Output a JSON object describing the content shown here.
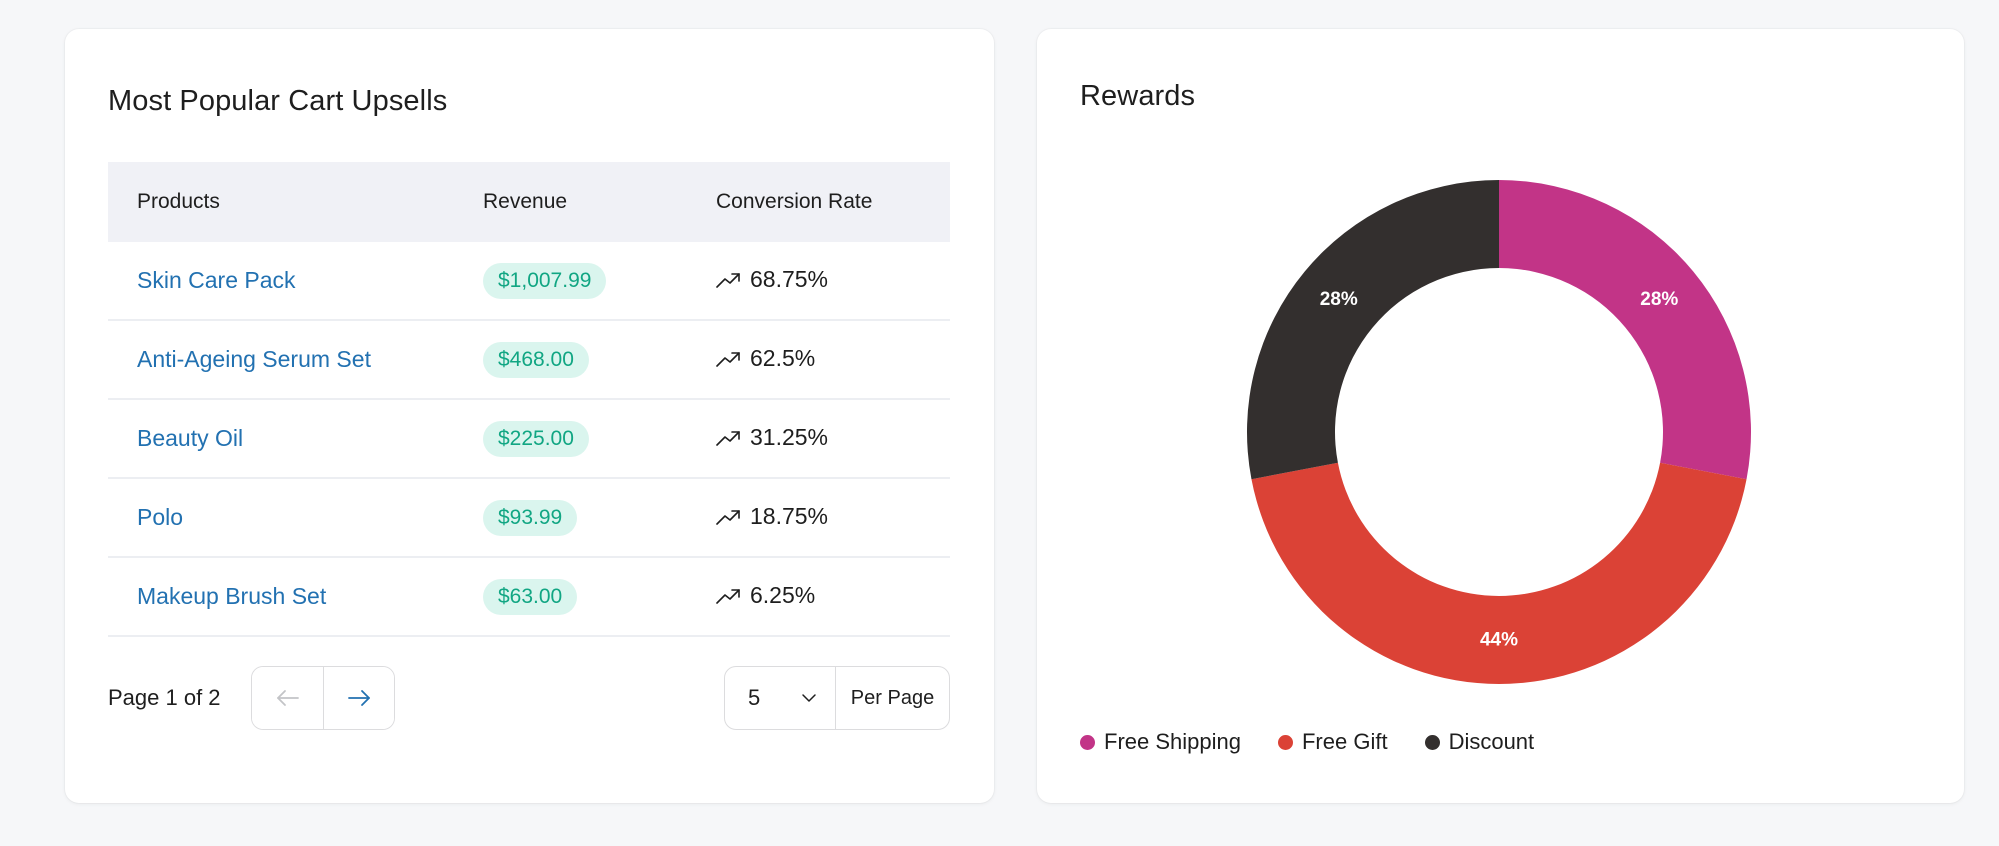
{
  "upsells": {
    "title": "Most Popular Cart Upsells",
    "columns": {
      "products": "Products",
      "revenue": "Revenue",
      "conversion": "Conversion Rate"
    },
    "rows": [
      {
        "product": "Skin Care Pack",
        "revenue": "$1,007.99",
        "conversion": "68.75%"
      },
      {
        "product": "Anti-Ageing Serum Set",
        "revenue": "$468.00",
        "conversion": "62.5%"
      },
      {
        "product": "Beauty Oil",
        "revenue": "$225.00",
        "conversion": "31.25%"
      },
      {
        "product": "Polo",
        "revenue": "$93.99",
        "conversion": "18.75%"
      },
      {
        "product": "Makeup Brush Set",
        "revenue": "$63.00",
        "conversion": "6.25%"
      }
    ],
    "trend_icon": "trending-up-icon",
    "pagination": {
      "page_text": "Page 1 of 2",
      "prev_icon": "arrow-left-icon",
      "next_icon": "arrow-right-icon",
      "per_page_value": "5",
      "per_page_label": "Per Page"
    },
    "colors": {
      "link": "#2271b1",
      "badge_bg": "#daf5ee",
      "badge_text": "#11a683"
    }
  },
  "rewards": {
    "title": "Rewards",
    "chart_data": {
      "type": "pie",
      "donut": true,
      "categories": [
        "Free Shipping",
        "Free Gift",
        "Discount"
      ],
      "values": [
        28,
        44,
        28
      ],
      "value_labels": [
        "28%",
        "44%",
        "28%"
      ],
      "colors": [
        "#c23487",
        "#db4236",
        "#332f2e"
      ],
      "start": "top",
      "direction": "clockwise",
      "legend": "bottom-left"
    }
  }
}
